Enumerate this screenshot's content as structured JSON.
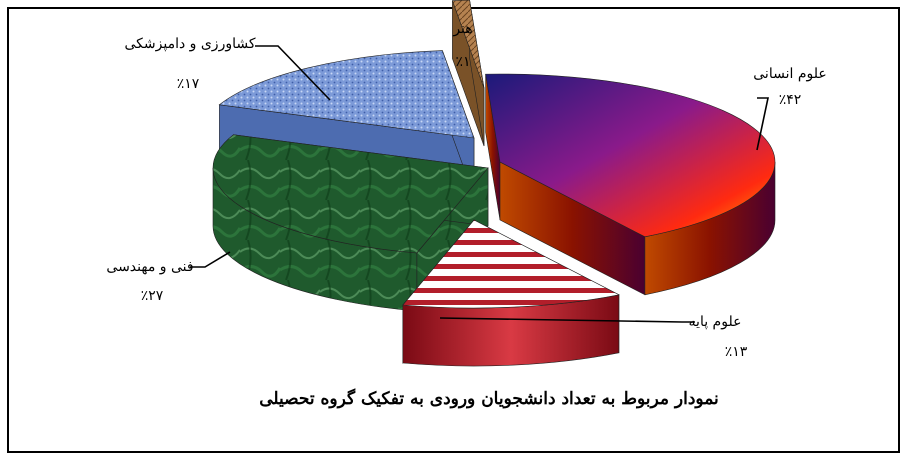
{
  "chart_data": {
    "type": "pie",
    "title": "نمودار مربوط به تعداد دانشجویان ورودی به تفکیک گروه تحصیلی",
    "slices": [
      {
        "label": "علوم انسانی",
        "value": 42,
        "value_label": "٪۴۲",
        "color": "#8a0f6a"
      },
      {
        "label": "علوم پایه",
        "value": 13,
        "value_label": "٪۱۳",
        "color": "#b0202a"
      },
      {
        "label": "فنی و مهندسی",
        "value": 27,
        "value_label": "٪۲۷",
        "color": "#1e5a2c"
      },
      {
        "label": "کشاورزی و دامپزشکی",
        "value": 17,
        "value_label": "٪۱۷",
        "color": "#6f8fcf"
      },
      {
        "label": "هنر",
        "value": 1,
        "value_label": "٪۱",
        "color": "#a8743e"
      }
    ],
    "legend": "none"
  }
}
